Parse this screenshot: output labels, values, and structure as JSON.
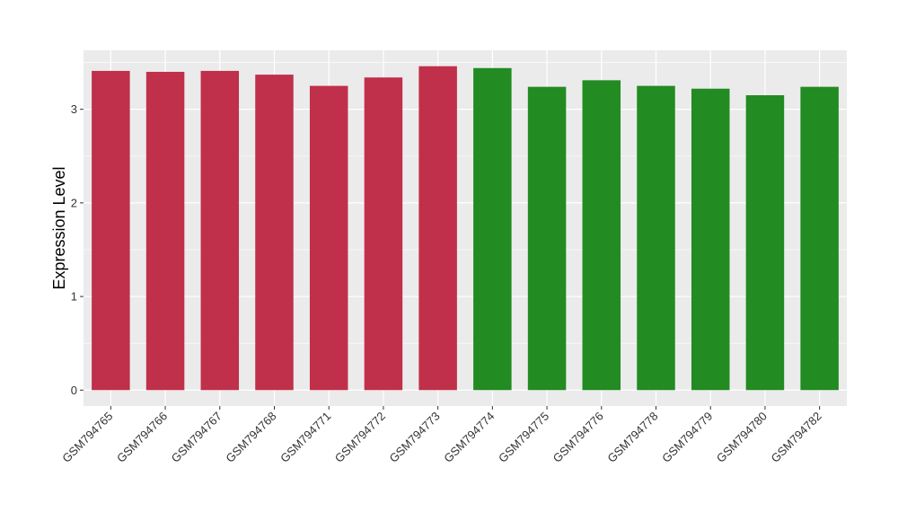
{
  "chart_data": {
    "type": "bar",
    "ylabel": "Expression Level",
    "xlabel": "",
    "ylim": [
      -0.17,
      3.63
    ],
    "yticks": [
      0,
      1,
      2,
      3
    ],
    "grid": true,
    "categories": [
      "GSM794765",
      "GSM794766",
      "GSM794767",
      "GSM794768",
      "GSM794771",
      "GSM794772",
      "GSM794773",
      "GSM794774",
      "GSM794775",
      "GSM794776",
      "GSM794778",
      "GSM794779",
      "GSM794780",
      "GSM794782"
    ],
    "values": [
      3.41,
      3.4,
      3.41,
      3.37,
      3.25,
      3.34,
      3.46,
      3.44,
      3.24,
      3.31,
      3.25,
      3.22,
      3.15,
      3.24
    ],
    "colors": [
      "#C0304A",
      "#C0304A",
      "#C0304A",
      "#C0304A",
      "#C0304A",
      "#C0304A",
      "#C0304A",
      "#228B22",
      "#228B22",
      "#228B22",
      "#228B22",
      "#228B22",
      "#228B22",
      "#228B22"
    ],
    "panel_background": "#EBEBEB",
    "gridline_color": "#FFFFFF"
  }
}
